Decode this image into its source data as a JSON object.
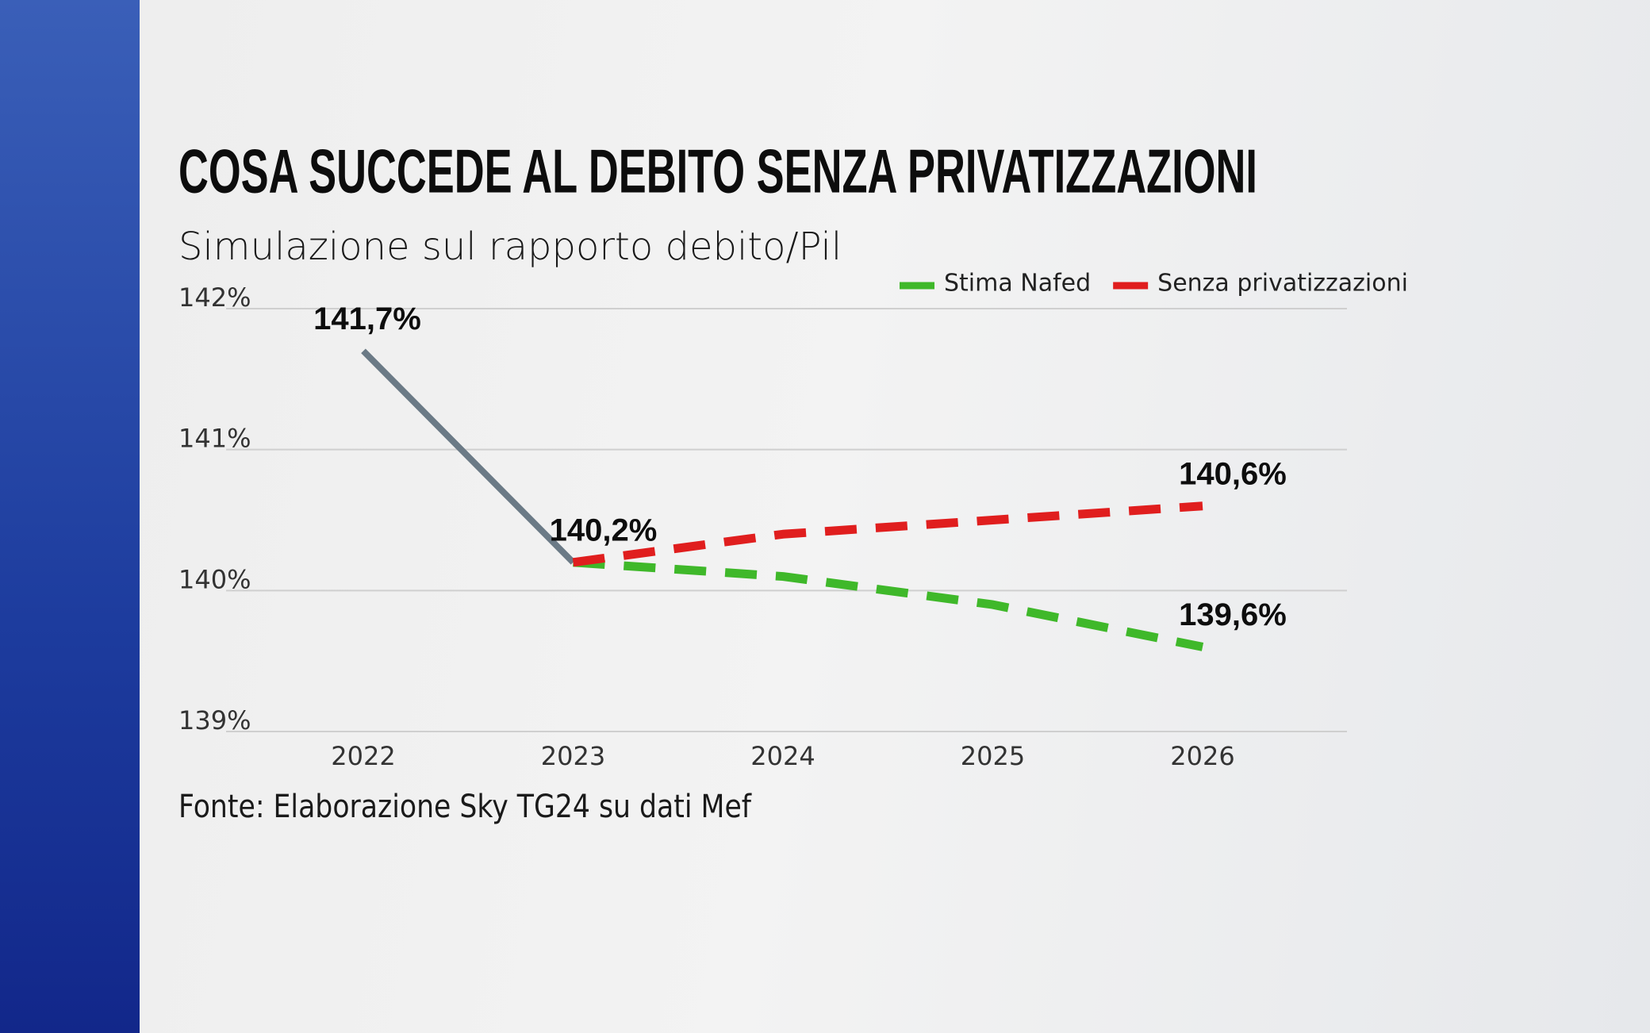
{
  "chart_data": {
    "type": "line",
    "title": "COSA SUCCEDE AL DEBITO SENZA PRIVATIZZAZIONI",
    "subtitle": "Simulazione sul rapporto debito/Pil",
    "source": "Fonte: Elaborazione Sky TG24 su dati Mef",
    "categories": [
      "2022",
      "2023",
      "2024",
      "2025",
      "2026"
    ],
    "series": [
      {
        "color": "#6b7a86",
        "dashed": false,
        "values": [
          141.7,
          140.2,
          null,
          null,
          null
        ],
        "value_labels": [
          "141,7%",
          "140,2%",
          null,
          null,
          null
        ]
      },
      {
        "name": "Stima Nafed",
        "color": "#3fb82a",
        "dashed": true,
        "values": [
          null,
          140.2,
          140.1,
          139.9,
          139.6
        ],
        "value_labels": [
          null,
          null,
          null,
          null,
          "139,6%"
        ]
      },
      {
        "name": "Senza privatizzazioni",
        "color": "#e01e1e",
        "dashed": true,
        "values": [
          null,
          140.2,
          140.4,
          140.5,
          140.6
        ],
        "value_labels": [
          null,
          null,
          null,
          null,
          "140,6%"
        ]
      }
    ],
    "ylim": [
      139,
      142
    ],
    "yticks": [
      {
        "value": 139,
        "label": "139%"
      },
      {
        "value": 140,
        "label": "140%"
      },
      {
        "value": 141,
        "label": "141%"
      },
      {
        "value": 142,
        "label": "142%"
      }
    ],
    "grid": true,
    "legend": "top-right"
  }
}
